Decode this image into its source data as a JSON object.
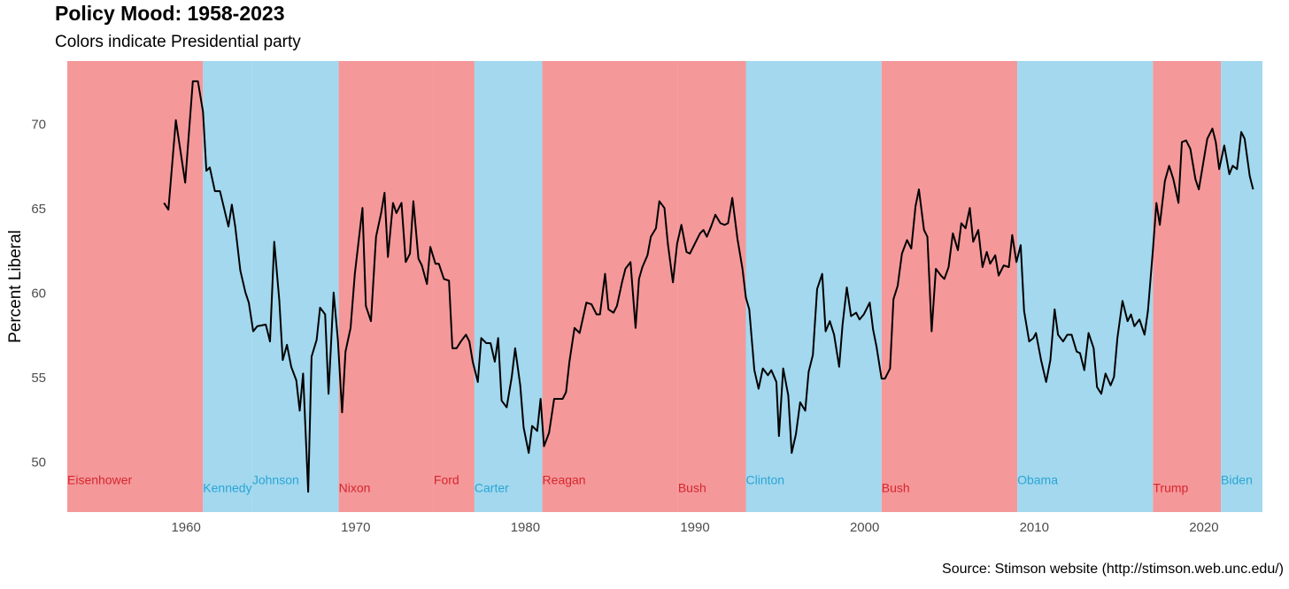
{
  "chart_data": {
    "type": "line",
    "title": "Policy Mood: 1958-2023",
    "subtitle": "Colors indicate Presidential party",
    "y_label": "Percent Liberal",
    "source": "Source: Stimson website (http://stimson.web.unc.edu/)",
    "xlim": [
      1953.0,
      2023.45
    ],
    "ylim": [
      47.1,
      73.8
    ],
    "xticks": [
      1960,
      1970,
      1980,
      1990,
      2000,
      2010,
      2020
    ],
    "yticks": [
      50,
      55,
      60,
      65,
      70
    ],
    "grid": false,
    "color": "#000000",
    "presidents": [
      {
        "name": "Eisenhower",
        "start": 1953.0,
        "end": 1961.0,
        "color": "#f4989a",
        "text_color": "#d7262e"
      },
      {
        "name": "Kennedy",
        "start": 1961.0,
        "end": 1963.9,
        "color": "#a3d8ee",
        "text_color": "#2aa6d6"
      },
      {
        "name": "Johnson",
        "start": 1963.9,
        "end": 1969.0,
        "color": "#a3d8ee",
        "text_color": "#2aa6d6"
      },
      {
        "name": "Nixon",
        "start": 1969.0,
        "end": 1974.6,
        "color": "#f4989a",
        "text_color": "#d7262e"
      },
      {
        "name": "Ford",
        "start": 1974.6,
        "end": 1977.0,
        "color": "#f4989a",
        "text_color": "#d7262e"
      },
      {
        "name": "Carter",
        "start": 1977.0,
        "end": 1981.0,
        "color": "#a3d8ee",
        "text_color": "#2aa6d6"
      },
      {
        "name": "Reagan",
        "start": 1981.0,
        "end": 1989.0,
        "color": "#f4989a",
        "text_color": "#d7262e"
      },
      {
        "name": "Bush",
        "start": 1989.0,
        "end": 1993.0,
        "color": "#f4989a",
        "text_color": "#d7262e"
      },
      {
        "name": "Clinton",
        "start": 1993.0,
        "end": 2001.0,
        "color": "#a3d8ee",
        "text_color": "#2aa6d6"
      },
      {
        "name": "Bush",
        "start": 2001.0,
        "end": 2009.0,
        "color": "#f4989a",
        "text_color": "#d7262e"
      },
      {
        "name": "Obama",
        "start": 2009.0,
        "end": 2017.0,
        "color": "#a3d8ee",
        "text_color": "#2aa6d6"
      },
      {
        "name": "Trump",
        "start": 2017.0,
        "end": 2021.0,
        "color": "#f4989a",
        "text_color": "#d7262e"
      },
      {
        "name": "Biden",
        "start": 2021.0,
        "end": 2023.45,
        "color": "#a3d8ee",
        "text_color": "#2aa6d6"
      }
    ],
    "x": [
      1958.7,
      1958.96,
      1959.4,
      1959.95,
      1960.4,
      1960.7,
      1961.0,
      1961.2,
      1961.4,
      1961.7,
      1962.0,
      1962.5,
      1962.7,
      1962.9,
      1963.2,
      1963.5,
      1963.7,
      1963.96,
      1964.2,
      1964.7,
      1964.95,
      1965.2,
      1965.5,
      1965.7,
      1965.95,
      1966.2,
      1966.5,
      1966.7,
      1966.9,
      1967.2,
      1967.4,
      1967.7,
      1967.9,
      1968.2,
      1968.4,
      1968.7,
      1968.95,
      1969.2,
      1969.4,
      1969.7,
      1969.95,
      1970.4,
      1970.6,
      1970.9,
      1971.2,
      1971.5,
      1971.7,
      1971.9,
      1972.2,
      1972.4,
      1972.7,
      1972.95,
      1973.2,
      1973.4,
      1973.7,
      1973.9,
      1974.2,
      1974.4,
      1974.7,
      1974.9,
      1975.2,
      1975.5,
      1975.7,
      1975.95,
      1976.2,
      1976.5,
      1976.7,
      1976.9,
      1977.2,
      1977.4,
      1977.7,
      1977.95,
      1978.2,
      1978.4,
      1978.6,
      1978.9,
      1979.2,
      1979.4,
      1979.7,
      1979.9,
      1980.2,
      1980.4,
      1980.7,
      1980.9,
      1981.1,
      1981.4,
      1981.7,
      1982.2,
      1982.4,
      1982.6,
      1982.9,
      1983.2,
      1983.4,
      1983.6,
      1983.9,
      1984.2,
      1984.4,
      1984.7,
      1984.9,
      1985.2,
      1985.4,
      1985.7,
      1985.9,
      1986.2,
      1986.5,
      1986.7,
      1986.9,
      1987.2,
      1987.4,
      1987.7,
      1987.9,
      1988.2,
      1988.4,
      1988.7,
      1988.95,
      1989.2,
      1989.5,
      1989.7,
      1989.95,
      1990.3,
      1990.5,
      1990.7,
      1990.95,
      1991.2,
      1991.5,
      1991.75,
      1991.95,
      1992.2,
      1992.5,
      1992.8,
      1993.0,
      1993.2,
      1993.5,
      1993.75,
      1994.0,
      1994.3,
      1994.5,
      1994.8,
      1994.95,
      1995.2,
      1995.5,
      1995.7,
      1995.95,
      1996.2,
      1996.5,
      1996.7,
      1996.95,
      1997.2,
      1997.5,
      1997.7,
      1997.95,
      1998.2,
      1998.5,
      1998.7,
      1998.95,
      1999.2,
      1999.5,
      1999.7,
      1999.95,
      2000.3,
      2000.5,
      2000.7,
      2001.0,
      2001.2,
      2001.5,
      2001.7,
      2001.95,
      2002.2,
      2002.5,
      2002.75,
      2003.0,
      2003.2,
      2003.5,
      2003.7,
      2003.95,
      2004.2,
      2004.5,
      2004.7,
      2004.95,
      2005.2,
      2005.5,
      2005.7,
      2005.95,
      2006.2,
      2006.4,
      2006.7,
      2006.95,
      2007.2,
      2007.4,
      2007.7,
      2007.9,
      2008.2,
      2008.5,
      2008.7,
      2008.95,
      2009.2,
      2009.4,
      2009.7,
      2009.95,
      2010.1,
      2010.4,
      2010.7,
      2010.95,
      2011.2,
      2011.4,
      2011.7,
      2011.95,
      2012.2,
      2012.5,
      2012.7,
      2012.95,
      2013.2,
      2013.5,
      2013.7,
      2013.95,
      2014.2,
      2014.5,
      2014.7,
      2014.9,
      2015.2,
      2015.5,
      2015.7,
      2015.9,
      2016.2,
      2016.5,
      2016.7,
      2017.0,
      2017.2,
      2017.4,
      2017.7,
      2017.95,
      2018.2,
      2018.5,
      2018.7,
      2018.95,
      2019.2,
      2019.5,
      2019.7,
      2019.95,
      2020.2,
      2020.5,
      2020.7,
      2020.9,
      2021.2,
      2021.5,
      2021.7,
      2021.95,
      2022.2,
      2022.4,
      2022.7,
      2022.9
    ],
    "values": [
      65.4,
      65.0,
      70.3,
      66.6,
      72.6,
      72.6,
      70.8,
      67.3,
      67.5,
      66.1,
      66.1,
      64.0,
      65.3,
      64.0,
      61.4,
      60.1,
      59.5,
      57.8,
      58.1,
      58.2,
      57.2,
      63.1,
      59.6,
      56.1,
      57.0,
      55.7,
      54.9,
      53.1,
      55.3,
      48.3,
      56.3,
      57.3,
      59.2,
      58.8,
      54.1,
      60.1,
      57.3,
      53.0,
      56.6,
      58.0,
      61.2,
      65.1,
      59.3,
      58.4,
      63.4,
      64.8,
      66.0,
      62.2,
      65.4,
      64.8,
      65.4,
      61.9,
      62.4,
      65.5,
      62.1,
      61.7,
      60.6,
      62.8,
      61.8,
      61.8,
      60.9,
      60.8,
      56.8,
      56.8,
      57.2,
      57.6,
      57.2,
      56.0,
      54.8,
      57.4,
      57.1,
      57.1,
      56.0,
      57.4,
      53.7,
      53.3,
      55.1,
      56.8,
      54.6,
      52.1,
      50.6,
      52.2,
      51.9,
      53.8,
      51.0,
      51.8,
      53.8,
      53.8,
      54.2,
      56.0,
      58.0,
      57.7,
      58.6,
      59.5,
      59.4,
      58.8,
      58.8,
      61.2,
      59.1,
      58.9,
      59.3,
      60.7,
      61.5,
      61.9,
      58.0,
      60.9,
      61.6,
      62.3,
      63.4,
      63.9,
      65.5,
      65.1,
      63.0,
      60.7,
      63.0,
      64.1,
      62.5,
      62.4,
      62.9,
      63.6,
      63.8,
      63.4,
      64.0,
      64.7,
      64.2,
      64.1,
      64.2,
      65.7,
      63.3,
      61.5,
      59.8,
      59.1,
      55.5,
      54.4,
      55.6,
      55.2,
      55.5,
      54.8,
      51.6,
      55.6,
      54.0,
      50.6,
      51.7,
      53.6,
      53.1,
      55.4,
      56.4,
      60.3,
      61.2,
      57.8,
      58.4,
      57.6,
      55.7,
      58.2,
      60.4,
      58.7,
      58.9,
      58.5,
      58.8,
      59.5,
      57.9,
      56.9,
      55.0,
      55.0,
      55.6,
      59.7,
      60.5,
      62.4,
      63.2,
      62.7,
      65.2,
      66.2,
      63.8,
      63.4,
      57.8,
      61.5,
      61.1,
      60.9,
      61.6,
      63.6,
      62.6,
      64.2,
      63.9,
      65.1,
      63.1,
      63.8,
      61.6,
      62.5,
      61.8,
      62.3,
      61.1,
      61.7,
      61.6,
      63.5,
      61.9,
      62.9,
      59.0,
      57.2,
      57.4,
      57.7,
      56.1,
      54.8,
      56.1,
      59.1,
      57.6,
      57.2,
      57.6,
      57.6,
      56.6,
      56.5,
      55.5,
      57.7,
      56.8,
      54.5,
      54.1,
      55.3,
      54.6,
      55.1,
      57.4,
      59.6,
      58.4,
      58.8,
      58.1,
      58.5,
      57.6,
      59.0,
      62.7,
      65.4,
      64.1,
      66.7,
      67.6,
      66.8,
      65.4,
      69.0,
      69.1,
      68.6,
      66.8,
      66.2,
      67.7,
      69.2,
      69.8,
      69.0,
      67.4,
      68.8,
      67.1,
      67.6,
      67.4,
      69.6,
      69.2,
      67.0,
      66.2
    ]
  }
}
